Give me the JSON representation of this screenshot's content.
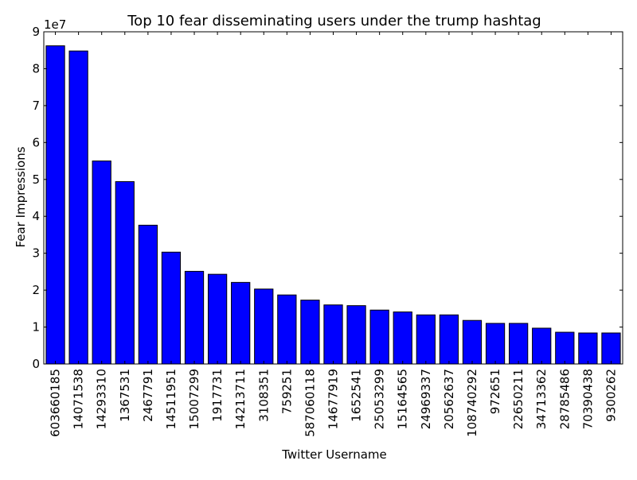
{
  "chart_data": {
    "type": "bar",
    "title": "Top 10 fear disseminating users under the trump hashtag",
    "xlabel": "Twitter Username",
    "ylabel": "Fear Impressions",
    "y_scale_label": "1e7",
    "ylim": [
      0,
      90000000
    ],
    "yticks": [
      0,
      10000000,
      20000000,
      30000000,
      40000000,
      50000000,
      60000000,
      70000000,
      80000000,
      90000000
    ],
    "ytick_labels": [
      "0",
      "1",
      "2",
      "3",
      "4",
      "5",
      "6",
      "7",
      "8",
      "9"
    ],
    "grid": false,
    "bar_color": "#0000ff",
    "categories": [
      "603660185",
      "14071538",
      "14293310",
      "1367531",
      "2467791",
      "14511951",
      "15007299",
      "1917731",
      "14213711",
      "3108351",
      "759251",
      "587060118",
      "14677919",
      "1652541",
      "25053299",
      "15164565",
      "24969337",
      "20562637",
      "108740292",
      "972651",
      "22650211",
      "34713362",
      "28785486",
      "70390438",
      "9300262"
    ],
    "values": [
      86200000,
      84800000,
      55000000,
      49400000,
      37600000,
      30300000,
      25100000,
      24300000,
      22100000,
      20300000,
      18700000,
      17300000,
      16000000,
      15800000,
      14600000,
      14100000,
      13300000,
      13300000,
      11800000,
      11000000,
      11000000,
      9700000,
      8600000,
      8400000,
      8400000
    ]
  }
}
